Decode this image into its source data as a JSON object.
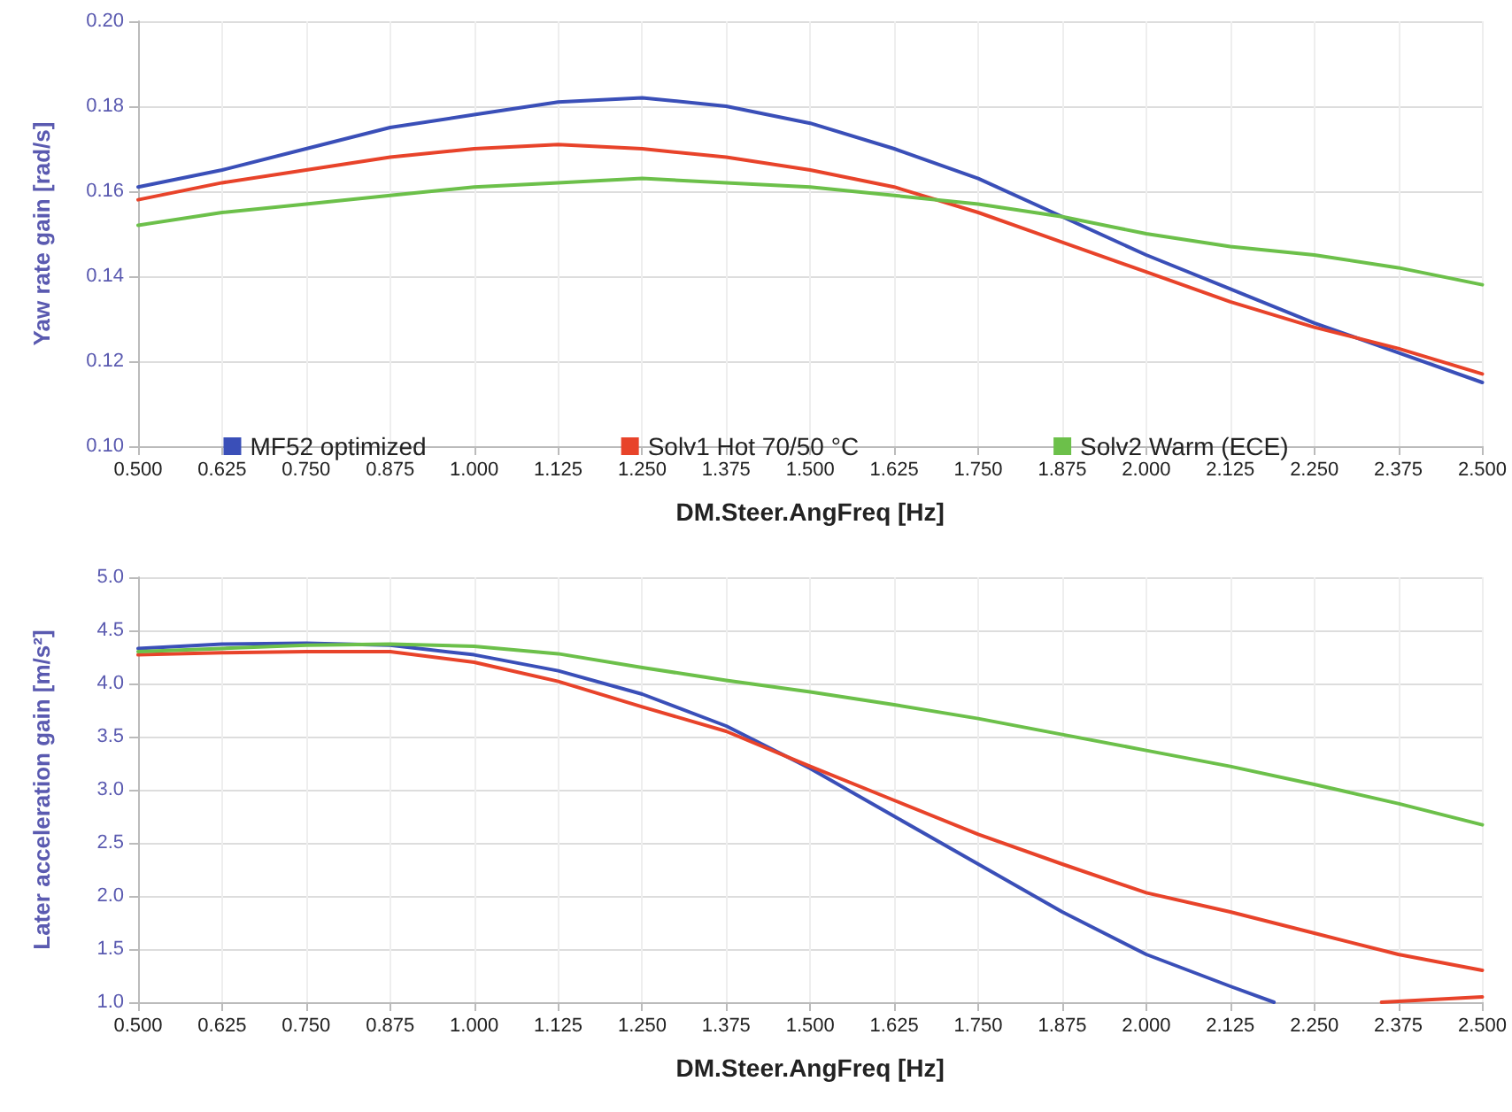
{
  "chart_data": [
    {
      "type": "line",
      "xlabel": "DM.Steer.AngFreq [Hz]",
      "ylabel": "Yaw rate gain [rad/s]",
      "x": [
        0.5,
        0.625,
        0.75,
        0.875,
        1.0,
        1.125,
        1.25,
        1.375,
        1.5,
        1.625,
        1.75,
        1.875,
        2.0,
        2.125,
        2.25,
        2.375,
        2.5
      ],
      "series": [
        {
          "name": "MF52 optimized",
          "color": "#3a4fb8",
          "values": [
            0.161,
            0.165,
            0.17,
            0.175,
            0.178,
            0.181,
            0.182,
            0.18,
            0.176,
            0.17,
            0.163,
            0.154,
            0.145,
            0.137,
            0.129,
            0.122,
            0.115
          ]
        },
        {
          "name": "Solv1 Hot 70/50 °C",
          "color": "#e8432a",
          "values": [
            0.158,
            0.162,
            0.165,
            0.168,
            0.17,
            0.171,
            0.17,
            0.168,
            0.165,
            0.161,
            0.155,
            0.148,
            0.141,
            0.134,
            0.128,
            0.123,
            0.117
          ]
        },
        {
          "name": "Solv2 Warm (ECE)",
          "color": "#6cc04a",
          "values": [
            0.152,
            0.155,
            0.157,
            0.159,
            0.161,
            0.162,
            0.163,
            0.162,
            0.161,
            0.159,
            0.157,
            0.154,
            0.15,
            0.147,
            0.145,
            0.142,
            0.138
          ]
        }
      ],
      "xlim": [
        0.5,
        2.5
      ],
      "xticks": [
        {
          "value": 0.5,
          "label": "0.500"
        },
        {
          "value": 0.625,
          "label": "0.625"
        },
        {
          "value": 0.75,
          "label": "0.750"
        },
        {
          "value": 0.875,
          "label": "0.875"
        },
        {
          "value": 1.0,
          "label": "1.000"
        },
        {
          "value": 1.125,
          "label": "1.125"
        },
        {
          "value": 1.25,
          "label": "1.250"
        },
        {
          "value": 1.375,
          "label": "1.375"
        },
        {
          "value": 1.5,
          "label": "1.500"
        },
        {
          "value": 1.625,
          "label": "1.625"
        },
        {
          "value": 1.75,
          "label": "1.750"
        },
        {
          "value": 1.875,
          "label": "1.875"
        },
        {
          "value": 2.0,
          "label": "2.000"
        },
        {
          "value": 2.125,
          "label": "2.125"
        },
        {
          "value": 2.25,
          "label": "2.250"
        },
        {
          "value": 2.375,
          "label": "2.375"
        },
        {
          "value": 2.5,
          "label": "2.500"
        }
      ],
      "ylim": [
        0.1,
        0.2
      ],
      "yticks": [
        {
          "value": 0.1,
          "label": "0.10"
        },
        {
          "value": 0.12,
          "label": "0.12"
        },
        {
          "value": 0.14,
          "label": "0.14"
        },
        {
          "value": 0.16,
          "label": "0.16"
        },
        {
          "value": 0.18,
          "label": "0.18"
        },
        {
          "value": 0.2,
          "label": "0.20"
        }
      ],
      "grid": true,
      "legend": "bottom",
      "marker": "none",
      "line_style": "solid"
    },
    {
      "type": "line",
      "xlabel": "DM.Steer.AngFreq [Hz]",
      "ylabel": "Later acceleration gain [m/s²]",
      "x": [
        0.5,
        0.625,
        0.75,
        0.875,
        1.0,
        1.125,
        1.25,
        1.375,
        1.5,
        1.625,
        1.75,
        1.875,
        2.0,
        2.125,
        2.25,
        2.375,
        2.5
      ],
      "series": [
        {
          "color": "#3a4fb8",
          "x": [
            0.5,
            0.625,
            0.75,
            0.875,
            1.0,
            1.125,
            1.25,
            1.375,
            1.5,
            1.625,
            1.75,
            1.875,
            2.0,
            2.125,
            2.19
          ],
          "values": [
            4.33,
            4.37,
            4.38,
            4.36,
            4.27,
            4.12,
            3.9,
            3.6,
            3.2,
            2.75,
            2.3,
            1.85,
            1.45,
            1.15,
            1.0
          ]
        },
        {
          "color": "#e8432a",
          "values": [
            4.27,
            4.29,
            4.3,
            4.3,
            4.2,
            4.02,
            3.78,
            3.55,
            3.22,
            2.9,
            2.58,
            2.3,
            2.03,
            1.85,
            1.65,
            1.45,
            1.3
          ]
        },
        {
          "color": "#6cc04a",
          "values": [
            4.3,
            4.33,
            4.36,
            4.37,
            4.35,
            4.28,
            4.15,
            4.03,
            3.92,
            3.8,
            3.67,
            3.52,
            3.37,
            3.22,
            3.05,
            2.87,
            2.67
          ]
        },
        {
          "color": "#e8432a",
          "x": [
            2.35,
            2.5
          ],
          "values": [
            1.0,
            1.05
          ]
        }
      ],
      "xlim": [
        0.5,
        2.5
      ],
      "xticks": [
        {
          "value": 0.5,
          "label": "0.500"
        },
        {
          "value": 0.625,
          "label": "0.625"
        },
        {
          "value": 0.75,
          "label": "0.750"
        },
        {
          "value": 0.875,
          "label": "0.875"
        },
        {
          "value": 1.0,
          "label": "1.000"
        },
        {
          "value": 1.125,
          "label": "1.125"
        },
        {
          "value": 1.25,
          "label": "1.250"
        },
        {
          "value": 1.375,
          "label": "1.375"
        },
        {
          "value": 1.5,
          "label": "1.500"
        },
        {
          "value": 1.625,
          "label": "1.625"
        },
        {
          "value": 1.75,
          "label": "1.750"
        },
        {
          "value": 1.875,
          "label": "1.875"
        },
        {
          "value": 2.0,
          "label": "2.000"
        },
        {
          "value": 2.125,
          "label": "2.125"
        },
        {
          "value": 2.25,
          "label": "2.250"
        },
        {
          "value": 2.375,
          "label": "2.375"
        },
        {
          "value": 2.5,
          "label": "2.500"
        }
      ],
      "ylim": [
        1.0,
        5.0
      ],
      "yticks": [
        {
          "value": 1.0,
          "label": "1.0"
        },
        {
          "value": 1.5,
          "label": "1.5"
        },
        {
          "value": 2.0,
          "label": "2.0"
        },
        {
          "value": 2.5,
          "label": "2.5"
        },
        {
          "value": 3.0,
          "label": "3.0"
        },
        {
          "value": 3.5,
          "label": "3.5"
        },
        {
          "value": 4.0,
          "label": "4.0"
        },
        {
          "value": 4.5,
          "label": "4.5"
        },
        {
          "value": 5.0,
          "label": "5.0"
        }
      ],
      "grid": true,
      "marker": "none",
      "line_style": "solid"
    }
  ]
}
